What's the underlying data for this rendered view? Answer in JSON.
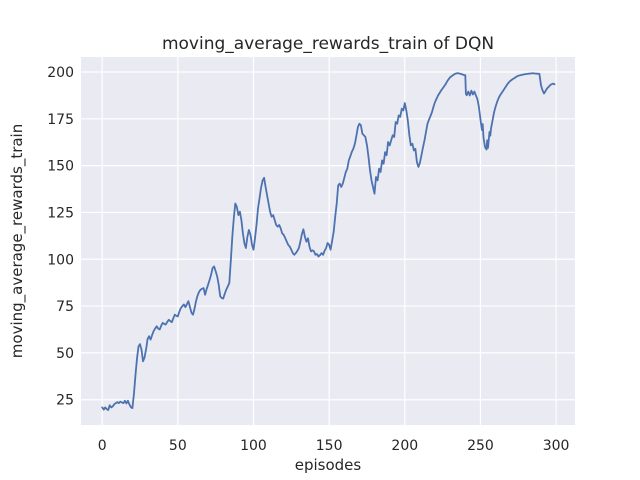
{
  "figure": {
    "background": "#ffffff",
    "axes_background": "#eaeaf2",
    "grid_color": "#ffffff",
    "text_color": "#262626"
  },
  "chart_data": {
    "type": "line",
    "title": "moving_average_rewards_train of DQN",
    "xlabel": "episodes",
    "ylabel": "moving_average_rewards_train",
    "legend_position": "none",
    "grid": true,
    "xlim": [
      -14,
      312.5
    ],
    "ylim": [
      11.5,
      208
    ],
    "x_ticks": [
      0,
      50,
      100,
      150,
      200,
      250,
      300
    ],
    "y_ticks": [
      25,
      50,
      75,
      100,
      125,
      150,
      175,
      200
    ],
    "series": [
      {
        "name": "moving_average_rewards_train",
        "color": "#4c72b0",
        "points": [
          [
            0,
            20.9
          ],
          [
            1,
            19.7
          ],
          [
            2,
            20.9
          ],
          [
            3,
            20
          ],
          [
            4,
            19.5
          ],
          [
            5,
            22
          ],
          [
            6,
            20.9
          ],
          [
            7,
            21.5
          ],
          [
            8,
            22.6
          ],
          [
            9,
            23.2
          ],
          [
            10,
            23.7
          ],
          [
            11,
            23.2
          ],
          [
            12,
            24
          ],
          [
            13,
            23.5
          ],
          [
            14,
            23.2
          ],
          [
            15,
            24.4
          ],
          [
            16,
            23
          ],
          [
            17,
            24.5
          ],
          [
            18,
            22.5
          ],
          [
            19,
            21
          ],
          [
            20,
            20.5
          ],
          [
            21,
            28.5
          ],
          [
            22,
            38.3
          ],
          [
            23,
            47
          ],
          [
            24,
            53.4
          ],
          [
            25,
            54.7
          ],
          [
            26,
            51.7
          ],
          [
            27,
            45.5
          ],
          [
            28,
            47.5
          ],
          [
            29,
            52
          ],
          [
            30,
            57.5
          ],
          [
            31,
            58.9
          ],
          [
            32,
            57.1
          ],
          [
            33,
            59.5
          ],
          [
            34,
            61.6
          ],
          [
            35,
            63
          ],
          [
            36,
            64.2
          ],
          [
            37,
            63
          ],
          [
            38,
            62.5
          ],
          [
            39,
            64.5
          ],
          [
            40,
            66
          ],
          [
            41,
            65.5
          ],
          [
            42,
            65.1
          ],
          [
            43,
            66.5
          ],
          [
            44,
            67.7
          ],
          [
            45,
            67
          ],
          [
            46,
            66.4
          ],
          [
            47,
            68.5
          ],
          [
            48,
            70.4
          ],
          [
            49,
            69.8
          ],
          [
            50,
            69.5
          ],
          [
            51,
            72
          ],
          [
            52,
            74
          ],
          [
            53,
            75
          ],
          [
            54,
            75.9
          ],
          [
            55,
            74.4
          ],
          [
            56,
            76
          ],
          [
            57,
            77.6
          ],
          [
            58,
            74.5
          ],
          [
            59,
            71.4
          ],
          [
            60,
            70.4
          ],
          [
            61,
            73.5
          ],
          [
            62,
            77.6
          ],
          [
            63,
            80.5
          ],
          [
            64,
            82.5
          ],
          [
            65,
            83.7
          ],
          [
            66,
            84.2
          ],
          [
            67,
            84.6
          ],
          [
            68,
            81
          ],
          [
            69,
            84
          ],
          [
            70,
            86.4
          ],
          [
            71,
            89
          ],
          [
            72,
            91.7
          ],
          [
            73,
            95.3
          ],
          [
            74,
            96.2
          ],
          [
            75,
            93.5
          ],
          [
            76,
            90.8
          ],
          [
            77,
            86.4
          ],
          [
            78,
            80.2
          ],
          [
            79,
            79.3
          ],
          [
            80,
            79
          ],
          [
            81,
            81.5
          ],
          [
            82,
            83.7
          ],
          [
            83,
            85.5
          ],
          [
            84,
            87.3
          ],
          [
            85,
            99
          ],
          [
            86,
            112
          ],
          [
            87,
            121.9
          ],
          [
            88,
            129.8
          ],
          [
            89,
            128
          ],
          [
            90,
            123.6
          ],
          [
            91,
            125.4
          ],
          [
            92,
            120.9
          ],
          [
            93,
            113.8
          ],
          [
            94,
            108.5
          ],
          [
            95,
            106
          ],
          [
            96,
            112
          ],
          [
            97,
            115.6
          ],
          [
            98,
            113
          ],
          [
            99,
            107.8
          ],
          [
            100,
            105.1
          ],
          [
            101,
            111.2
          ],
          [
            102,
            118.3
          ],
          [
            103,
            127.1
          ],
          [
            104,
            132.4
          ],
          [
            105,
            138
          ],
          [
            106,
            142.1
          ],
          [
            107,
            143.5
          ],
          [
            108,
            138.6
          ],
          [
            109,
            134.1
          ],
          [
            110,
            129.7
          ],
          [
            111,
            125.4
          ],
          [
            112,
            122.7
          ],
          [
            113,
            123.6
          ],
          [
            114,
            120.9
          ],
          [
            115,
            118.3
          ],
          [
            116,
            117.4
          ],
          [
            117,
            118.3
          ],
          [
            118,
            116.5
          ],
          [
            119,
            113.8
          ],
          [
            120,
            113
          ],
          [
            121,
            111.2
          ],
          [
            122,
            109.4
          ],
          [
            123,
            107.6
          ],
          [
            124,
            106.7
          ],
          [
            125,
            105.1
          ],
          [
            126,
            103.3
          ],
          [
            127,
            102.4
          ],
          [
            128,
            103.3
          ],
          [
            129,
            104.5
          ],
          [
            130,
            106
          ],
          [
            131,
            109.5
          ],
          [
            132,
            113.5
          ],
          [
            133,
            116
          ],
          [
            134,
            112
          ],
          [
            135,
            109.4
          ],
          [
            136,
            111.2
          ],
          [
            137,
            106.7
          ],
          [
            138,
            104.2
          ],
          [
            139,
            104.8
          ],
          [
            140,
            104.2
          ],
          [
            141,
            102.4
          ],
          [
            142,
            102.8
          ],
          [
            143,
            101.5
          ],
          [
            144,
            102.2
          ],
          [
            145,
            103.3
          ],
          [
            146,
            102.4
          ],
          [
            147,
            104.5
          ],
          [
            148,
            106
          ],
          [
            149,
            108.7
          ],
          [
            150,
            107.8
          ],
          [
            151,
            105.1
          ],
          [
            152,
            110
          ],
          [
            153,
            114.7
          ],
          [
            154,
            122.7
          ],
          [
            155,
            129.7
          ],
          [
            156,
            139.5
          ],
          [
            157,
            140.4
          ],
          [
            158,
            138.6
          ],
          [
            159,
            140.4
          ],
          [
            160,
            143.5
          ],
          [
            161,
            146.6
          ],
          [
            162,
            148.4
          ],
          [
            163,
            152.8
          ],
          [
            164,
            155
          ],
          [
            165,
            157.3
          ],
          [
            166,
            159
          ],
          [
            167,
            161.7
          ],
          [
            168,
            166
          ],
          [
            169,
            170.6
          ],
          [
            170,
            172.4
          ],
          [
            171,
            171.5
          ],
          [
            172,
            167
          ],
          [
            173,
            166.2
          ],
          [
            174,
            165.3
          ],
          [
            175,
            160.8
          ],
          [
            176,
            154.6
          ],
          [
            177,
            147.5
          ],
          [
            178,
            142.1
          ],
          [
            179,
            138.6
          ],
          [
            180,
            135
          ],
          [
            181,
            143.9
          ],
          [
            182,
            142.1
          ],
          [
            183,
            148.4
          ],
          [
            184,
            146.6
          ],
          [
            185,
            152.8
          ],
          [
            186,
            151
          ],
          [
            187,
            157.2
          ],
          [
            188,
            155.5
          ],
          [
            189,
            162.6
          ],
          [
            190,
            160.8
          ],
          [
            191,
            163.5
          ],
          [
            192,
            166.2
          ],
          [
            193,
            165.3
          ],
          [
            194,
            173.3
          ],
          [
            195,
            172.4
          ],
          [
            196,
            176.8
          ],
          [
            197,
            176
          ],
          [
            198,
            180.4
          ],
          [
            199,
            179.5
          ],
          [
            200,
            183.4
          ],
          [
            201,
            179.5
          ],
          [
            202,
            174.2
          ],
          [
            203,
            166.5
          ],
          [
            204,
            160.8
          ],
          [
            205,
            161.7
          ],
          [
            206,
            158.1
          ],
          [
            207,
            159
          ],
          [
            208,
            151.9
          ],
          [
            209,
            149.3
          ],
          [
            210,
            151.5
          ],
          [
            211,
            155.4
          ],
          [
            212,
            159.5
          ],
          [
            213,
            163.5
          ],
          [
            214,
            168
          ],
          [
            215,
            172.4
          ],
          [
            216,
            174.5
          ],
          [
            217,
            176.5
          ],
          [
            218,
            178.6
          ],
          [
            219,
            181.5
          ],
          [
            220,
            183.9
          ],
          [
            221,
            185.8
          ],
          [
            222,
            187.5
          ],
          [
            223,
            188.8
          ],
          [
            224,
            190.1
          ],
          [
            225,
            191.2
          ],
          [
            226,
            192.3
          ],
          [
            227,
            193.5
          ],
          [
            228,
            195
          ],
          [
            229,
            196.2
          ],
          [
            230,
            197.2
          ],
          [
            231,
            197.8
          ],
          [
            232,
            198.4
          ],
          [
            233,
            198.9
          ],
          [
            234,
            199.2
          ],
          [
            235,
            199.4
          ],
          [
            236,
            199.2
          ],
          [
            237,
            199
          ],
          [
            238,
            198.7
          ],
          [
            239,
            198.4
          ],
          [
            240,
            198.3
          ],
          [
            240.4,
            188.3
          ],
          [
            241,
            187.6
          ],
          [
            242,
            189.5
          ],
          [
            243,
            187.5
          ],
          [
            244,
            190
          ],
          [
            245,
            188
          ],
          [
            246,
            189.5
          ],
          [
            247,
            187.5
          ],
          [
            248,
            185.5
          ],
          [
            249,
            181.3
          ],
          [
            250,
            175
          ],
          [
            251,
            169
          ],
          [
            251.5,
            172.2
          ],
          [
            252,
            165
          ],
          [
            253,
            160
          ],
          [
            254,
            158.6
          ],
          [
            254.5,
            163.5
          ],
          [
            255,
            159.5
          ],
          [
            256,
            168
          ],
          [
            256.5,
            166
          ],
          [
            257,
            169.8
          ],
          [
            258,
            174
          ],
          [
            259,
            178.6
          ],
          [
            260,
            181.5
          ],
          [
            261,
            184
          ],
          [
            262,
            186
          ],
          [
            263,
            187.6
          ],
          [
            264,
            188.8
          ],
          [
            265,
            190
          ],
          [
            266,
            191.2
          ],
          [
            267,
            192.5
          ],
          [
            268,
            193.7
          ],
          [
            269,
            194.7
          ],
          [
            270,
            195.4
          ],
          [
            271,
            196
          ],
          [
            272,
            196.5
          ],
          [
            273,
            197
          ],
          [
            274,
            197.6
          ],
          [
            275,
            198
          ],
          [
            276,
            198.2
          ],
          [
            277,
            198.4
          ],
          [
            278,
            198.6
          ],
          [
            279,
            198.7
          ],
          [
            280,
            198.9
          ],
          [
            281,
            199
          ],
          [
            282,
            199.1
          ],
          [
            283,
            199.2
          ],
          [
            284,
            199.3
          ],
          [
            285,
            199.3
          ],
          [
            286,
            199.2
          ],
          [
            287,
            199.1
          ],
          [
            288,
            199.1
          ],
          [
            289,
            199
          ],
          [
            290,
            192.9
          ],
          [
            291,
            190.2
          ],
          [
            292,
            188.5
          ],
          [
            293,
            189.8
          ],
          [
            294,
            191.2
          ],
          [
            295,
            192
          ],
          [
            296,
            192.9
          ],
          [
            297,
            193.4
          ],
          [
            298,
            193.8
          ],
          [
            299,
            193.4
          ]
        ]
      }
    ]
  }
}
